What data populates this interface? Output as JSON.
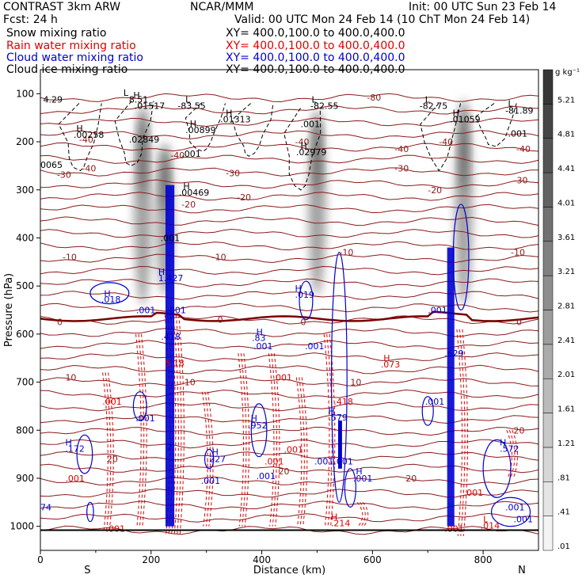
{
  "header": {
    "model": "CONTRAST   3km ARW",
    "center": "NCAR/MMM",
    "init": "Init: 00 UTC Sun 23 Feb 14",
    "fcst": "Fcst:    24 h",
    "valid": "Valid: 00 UTC Mon 24 Feb 14  (10 ChT Mon 24 Feb 14)",
    "rows": [
      {
        "label": "Snow mixing ratio",
        "xy": "XY=  400.0,100.0  to  400.0,400.0",
        "color": "#000000"
      },
      {
        "label": "Rain water mixing ratio",
        "xy": "XY=  400.0,100.0  to  400.0,400.0",
        "color": "#e00000"
      },
      {
        "label": "Cloud water mixing ratio",
        "xy": "XY=  400.0,100.0  to  400.0,400.0",
        "color": "#0000d0"
      },
      {
        "label": "Cloud ice mixing ratio",
        "xy": "XY=  400.0,100.0  to  400.0,400.0",
        "color": "#000000"
      }
    ]
  },
  "chart_data": {
    "type": "heatmap",
    "xlabel": "Distance (km)",
    "ylabel": "Pressure (hPa)",
    "xlim": [
      0,
      900
    ],
    "ylim": [
      1050,
      50
    ],
    "x_ticks": [
      0,
      200,
      400,
      600,
      800
    ],
    "y_ticks": [
      100,
      200,
      300,
      400,
      500,
      600,
      700,
      800,
      900,
      1000
    ],
    "x_end_labels": {
      "left": "S",
      "right": "N"
    },
    "colorbar": {
      "unit": "g kg⁻¹",
      "levels": [
        ".01",
        ".41",
        ".81",
        "1.21",
        "1.61",
        "2.01",
        "2.41",
        "2.81",
        "3.21",
        "3.61",
        "4.01",
        "4.41",
        "4.81",
        "5.21"
      ]
    },
    "shading_snow_columns": [
      {
        "x": 185,
        "p_top": 120,
        "p_bot": 540
      },
      {
        "x": 225,
        "p_top": 200,
        "p_bot": 520
      },
      {
        "x": 500,
        "p_top": 130,
        "p_bot": 520
      },
      {
        "x": 765,
        "p_top": 110,
        "p_bot": 540
      }
    ],
    "temperature_labels": [
      {
        "x": 70,
        "p": 195,
        "text": "-40"
      },
      {
        "x": 75,
        "p": 255,
        "text": "-40"
      },
      {
        "x": 30,
        "p": 268,
        "text": "-30"
      },
      {
        "x": 235,
        "p": 228,
        "text": "-40"
      },
      {
        "x": 335,
        "p": 265,
        "text": "-30"
      },
      {
        "x": 355,
        "p": 315,
        "text": "-20"
      },
      {
        "x": 310,
        "p": 440,
        "text": "-10"
      },
      {
        "x": 255,
        "p": 330,
        "text": "-20"
      },
      {
        "x": 460,
        "p": 200,
        "text": "-40"
      },
      {
        "x": 640,
        "p": 215,
        "text": "-40"
      },
      {
        "x": 640,
        "p": 255,
        "text": "-30"
      },
      {
        "x": 720,
        "p": 200,
        "text": "-40"
      },
      {
        "x": 860,
        "p": 215,
        "text": "-40"
      },
      {
        "x": 700,
        "p": 300,
        "text": "-20"
      },
      {
        "x": 855,
        "p": 280,
        "text": "-30"
      },
      {
        "x": 590,
        "p": 108,
        "text": "-80"
      },
      {
        "x": 40,
        "p": 440,
        "text": "-10"
      },
      {
        "x": 540,
        "p": 430,
        "text": "-10"
      },
      {
        "x": 850,
        "p": 430,
        "text": "-10"
      },
      {
        "x": 30,
        "p": 575,
        "text": "0"
      },
      {
        "x": 320,
        "p": 570,
        "text": "0"
      },
      {
        "x": 470,
        "p": 575,
        "text": "0"
      },
      {
        "x": 860,
        "p": 575,
        "text": "0"
      },
      {
        "x": 45,
        "p": 690,
        "text": "10"
      },
      {
        "x": 260,
        "p": 700,
        "text": "10"
      },
      {
        "x": 560,
        "p": 700,
        "text": "10"
      },
      {
        "x": 120,
        "p": 860,
        "text": "20"
      },
      {
        "x": 430,
        "p": 885,
        "text": "20"
      },
      {
        "x": 660,
        "p": 900,
        "text": "20"
      },
      {
        "x": 855,
        "p": 800,
        "text": "20"
      }
    ],
    "annotations": [
      {
        "x": 5,
        "p": 112,
        "text": "4.29",
        "color": "#000000"
      },
      {
        "x": 150,
        "p": 98,
        "text": "L",
        "color": "#000000"
      },
      {
        "x": 160,
        "p": 112,
        "text": "8.51",
        "color": "#000000"
      },
      {
        "x": 168,
        "p": 103,
        "text": "H",
        "color": "#000000"
      },
      {
        "x": 170,
        "p": 125,
        "text": ".01517",
        "color": "#000000"
      },
      {
        "x": 262,
        "p": 112,
        "text": "L",
        "color": "#000000"
      },
      {
        "x": 248,
        "p": 125,
        "text": "-83.55",
        "color": "#000000"
      },
      {
        "x": 335,
        "p": 140,
        "text": "H",
        "color": "#000000"
      },
      {
        "x": 325,
        "p": 153,
        "text": ".01313",
        "color": "#000000"
      },
      {
        "x": 270,
        "p": 162,
        "text": "H",
        "color": "#000000"
      },
      {
        "x": 262,
        "p": 175,
        "text": ".00899",
        "color": "#000000"
      },
      {
        "x": 65,
        "p": 172,
        "text": "H",
        "color": "#000000"
      },
      {
        "x": 60,
        "p": 185,
        "text": ".00258",
        "color": "#000000"
      },
      {
        "x": 160,
        "p": 195,
        "text": ".02849",
        "color": "#000000"
      },
      {
        "x": 0,
        "p": 248,
        "text": "0065",
        "color": "#000000"
      },
      {
        "x": 255,
        "p": 225,
        "text": ".001",
        "color": "#000000"
      },
      {
        "x": 258,
        "p": 292,
        "text": "H",
        "color": "#000000"
      },
      {
        "x": 250,
        "p": 305,
        "text": ".00469",
        "color": "#000000"
      },
      {
        "x": 490,
        "p": 112,
        "text": "L",
        "color": "#000000"
      },
      {
        "x": 488,
        "p": 125,
        "text": "-82.55",
        "color": "#000000"
      },
      {
        "x": 470,
        "p": 163,
        "text": ".001",
        "color": "#000000"
      },
      {
        "x": 470,
        "p": 208,
        "text": "H",
        "color": "#000000"
      },
      {
        "x": 462,
        "p": 221,
        "text": ".02979",
        "color": "#000000"
      },
      {
        "x": 695,
        "p": 112,
        "text": "L",
        "color": "#000000"
      },
      {
        "x": 685,
        "p": 125,
        "text": "-82.75",
        "color": "#000000"
      },
      {
        "x": 745,
        "p": 140,
        "text": "H",
        "color": "#000000"
      },
      {
        "x": 740,
        "p": 153,
        "text": ".01059",
        "color": "#000000"
      },
      {
        "x": 845,
        "p": 120,
        "text": "L",
        "color": "#000000"
      },
      {
        "x": 840,
        "p": 135,
        "text": "-81.89",
        "color": "#000000"
      },
      {
        "x": 845,
        "p": 183,
        "text": ".001",
        "color": "#000000"
      },
      {
        "x": 217,
        "p": 400,
        "text": ".001",
        "color": "#000000"
      },
      {
        "x": 213,
        "p": 470,
        "text": "H",
        "color": "#0000d0"
      },
      {
        "x": 213,
        "p": 483,
        "text": "1.427",
        "color": "#0000d0"
      },
      {
        "x": 115,
        "p": 515,
        "text": "H",
        "color": "#0000d0"
      },
      {
        "x": 110,
        "p": 528,
        "text": ".018",
        "color": "#0000d0"
      },
      {
        "x": 173,
        "p": 550,
        "text": ".001",
        "color": "#0000d0"
      },
      {
        "x": 228,
        "p": 550,
        "text": ".001",
        "color": "#0000d0"
      },
      {
        "x": 390,
        "p": 595,
        "text": "H",
        "color": "#0000d0"
      },
      {
        "x": 382,
        "p": 608,
        "text": ".83",
        "color": "#0000d0"
      },
      {
        "x": 385,
        "p": 625,
        "text": ".001",
        "color": "#0000d0"
      },
      {
        "x": 478,
        "p": 625,
        "text": ".001",
        "color": "#0000d0"
      },
      {
        "x": 460,
        "p": 505,
        "text": "H",
        "color": "#0000d0"
      },
      {
        "x": 460,
        "p": 518,
        "text": ".019",
        "color": "#0000d0"
      },
      {
        "x": 700,
        "p": 550,
        "text": ".001",
        "color": "#0000d0"
      },
      {
        "x": 730,
        "p": 640,
        "text": ".629",
        "color": "#0000d0"
      },
      {
        "x": 218,
        "p": 605,
        "text": ".418",
        "color": "#0000d0"
      },
      {
        "x": 225,
        "p": 660,
        "text": "5.18",
        "color": "#e00000"
      },
      {
        "x": 620,
        "p": 650,
        "text": "H",
        "color": "#e00000"
      },
      {
        "x": 615,
        "p": 663,
        "text": ".073",
        "color": "#e00000"
      },
      {
        "x": 420,
        "p": 690,
        "text": ".001",
        "color": "#e00000"
      },
      {
        "x": 112,
        "p": 740,
        "text": ".001",
        "color": "#e00000"
      },
      {
        "x": 695,
        "p": 740,
        "text": ".001",
        "color": "#0000d0"
      },
      {
        "x": 172,
        "p": 775,
        "text": ".001",
        "color": "#0000d0"
      },
      {
        "x": 380,
        "p": 775,
        "text": "H",
        "color": "#0000d0"
      },
      {
        "x": 375,
        "p": 790,
        "text": ".952",
        "color": "#0000d0"
      },
      {
        "x": 520,
        "p": 760,
        "text": "H",
        "color": "#0000d0"
      },
      {
        "x": 520,
        "p": 773,
        "text": ".579",
        "color": "#0000d0"
      },
      {
        "x": 530,
        "p": 740,
        "text": ".418",
        "color": "#e00000"
      },
      {
        "x": 45,
        "p": 825,
        "text": "H",
        "color": "#0000d0"
      },
      {
        "x": 45,
        "p": 838,
        "text": ".172",
        "color": "#0000d0"
      },
      {
        "x": 310,
        "p": 845,
        "text": "H",
        "color": "#0000d0"
      },
      {
        "x": 300,
        "p": 860,
        "text": ".227",
        "color": "#0000d0"
      },
      {
        "x": 228,
        "p": 835,
        "text": "2",
        "color": "#0000d0"
      },
      {
        "x": 440,
        "p": 840,
        "text": ".001",
        "color": "#e00000"
      },
      {
        "x": 405,
        "p": 865,
        "text": ".001",
        "color": "#e00000"
      },
      {
        "x": 495,
        "p": 865,
        "text": ".001.001",
        "color": "#0000d0"
      },
      {
        "x": 290,
        "p": 905,
        "text": ".001",
        "color": "#0000d0"
      },
      {
        "x": 390,
        "p": 895,
        "text": ".001",
        "color": "#0000d0"
      },
      {
        "x": 570,
        "p": 885,
        "text": "H",
        "color": "#0000d0"
      },
      {
        "x": 565,
        "p": 900,
        "text": ".001",
        "color": "#0000d0"
      },
      {
        "x": 45,
        "p": 900,
        "text": ".001",
        "color": "#e00000"
      },
      {
        "x": 0,
        "p": 960,
        "text": "74",
        "color": "#0000d0"
      },
      {
        "x": 765,
        "p": 930,
        "text": ".001",
        "color": "#e00000"
      },
      {
        "x": 830,
        "p": 825,
        "text": "H",
        "color": "#0000d0"
      },
      {
        "x": 830,
        "p": 838,
        "text": ".572",
        "color": "#0000d0"
      },
      {
        "x": 840,
        "p": 960,
        "text": ".001",
        "color": "#0000d0"
      },
      {
        "x": 855,
        "p": 985,
        "text": ".001",
        "color": "#0000d0"
      },
      {
        "x": 525,
        "p": 980,
        "text": "H",
        "color": "#e00000"
      },
      {
        "x": 525,
        "p": 993,
        "text": ".214",
        "color": "#e00000"
      },
      {
        "x": 800,
        "p": 985,
        "text": "L",
        "color": "#e00000"
      },
      {
        "x": 795,
        "p": 998,
        "text": ".014",
        "color": "#e00000"
      },
      {
        "x": 118,
        "p": 1005,
        "text": ".001",
        "color": "#e00000"
      },
      {
        "x": 730,
        "p": 1005,
        "text": ".001",
        "color": "#e00000"
      }
    ],
    "colors": {
      "temperature": "#8b1a1a",
      "snow": "#000000",
      "rain": "#e00000",
      "cloud_water": "#0000d0",
      "terrain": "#000000"
    }
  }
}
